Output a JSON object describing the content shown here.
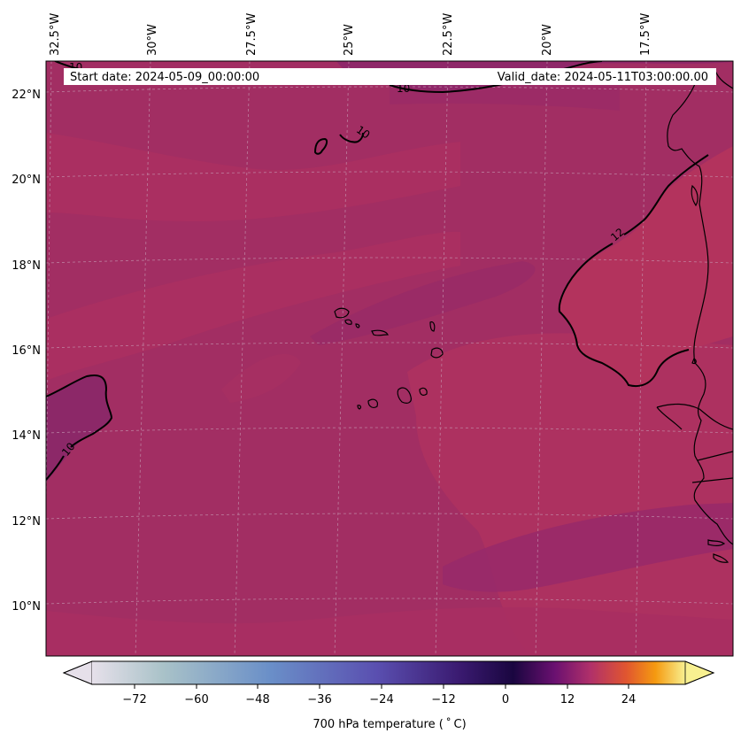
{
  "info": {
    "start_date": "Start date: 2024-05-09_00:00:00",
    "valid_date": "Valid_date: 2024-05-11T03:00:00.00"
  },
  "longitude_labels": [
    "32.5°W",
    "30°W",
    "27.5°W",
    "25°W",
    "22.5°W",
    "20°W",
    "17.5°W"
  ],
  "latitude_labels": [
    "22°N",
    "20°N",
    "18°N",
    "16°N",
    "14°N",
    "12°N",
    "10°N"
  ],
  "contour_labels": [
    "10",
    "10",
    "10",
    "10",
    "12"
  ],
  "colorbar": {
    "tick_labels": [
      "−72",
      "−60",
      "−48",
      "−36",
      "−24",
      "−12",
      "0",
      "12",
      "24"
    ],
    "label": "700 hPa temperature ($^\\circ$C)",
    "label_display": "700 hPa temperature ( ˚ C)",
    "colormap": [
      "#e6e0ea",
      "#a9c2c8",
      "#6a8fc8",
      "#5a4fb0",
      "#3a1a70",
      "#1a0640",
      "#6a1070",
      "#b0306a",
      "#e05530",
      "#f59a10",
      "#f8f090"
    ]
  },
  "colors": {
    "field_base": "#a22e63",
    "field_warm": "#ad3060",
    "field_cool": "#92296a",
    "contour": "#000000",
    "grid": "#c8a0b8"
  }
}
